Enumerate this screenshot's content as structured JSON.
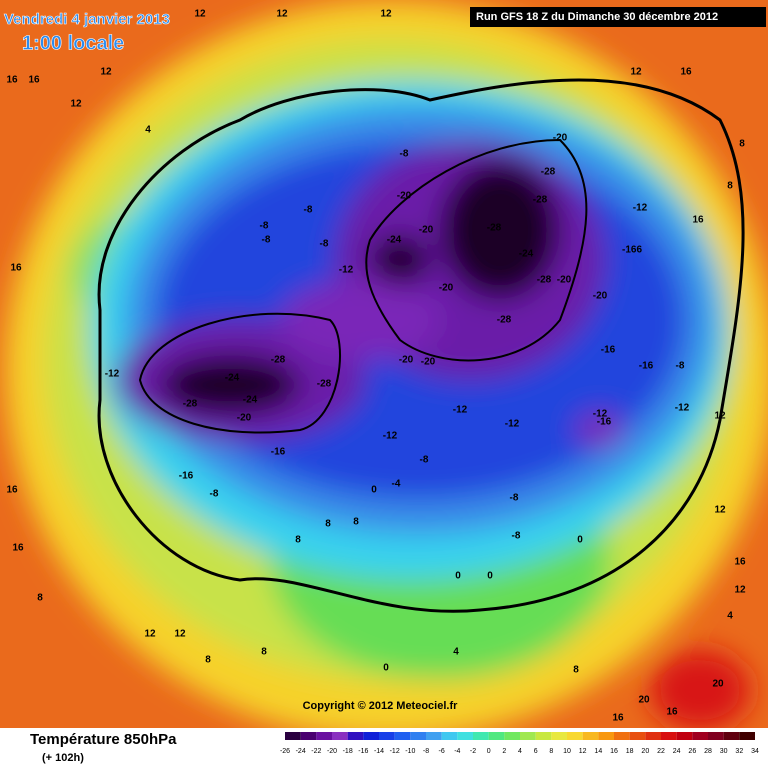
{
  "header": {
    "date": "Vendredi 4 janvier 2013",
    "time": "1:00 locale",
    "run": "Run GFS 18 Z du Dimanche 30 décembre 2012"
  },
  "copyright": "Copyright © 2012 Meteociel.fr",
  "legend": {
    "title": "Température 850hPa",
    "lead": "(+ 102h)",
    "ticks": [
      -26,
      -24,
      -22,
      -20,
      -18,
      -16,
      -14,
      -12,
      -10,
      -8,
      -6,
      -4,
      -2,
      0,
      2,
      4,
      6,
      8,
      10,
      12,
      14,
      16,
      18,
      20,
      22,
      24,
      26,
      28,
      30,
      32,
      34
    ],
    "colors": [
      "#2a0040",
      "#4a0070",
      "#6a10a0",
      "#8a30c0",
      "#3010c0",
      "#1020d8",
      "#1840e8",
      "#2060f0",
      "#3080f0",
      "#40a0f0",
      "#40c8f0",
      "#40e0e0",
      "#40e8b0",
      "#50e880",
      "#70e860",
      "#a0e850",
      "#c8e840",
      "#e8e840",
      "#f8d830",
      "#f8b820",
      "#f89810",
      "#f07010",
      "#e85010",
      "#e03010",
      "#d81010",
      "#c00010",
      "#a00020",
      "#800020",
      "#600010",
      "#400000"
    ]
  },
  "contour_labels": [
    "12",
    "12",
    "12",
    "16",
    "16",
    "12",
    "12",
    "12",
    "16",
    "4",
    "-8",
    "-20",
    "-28",
    "-20",
    "-28",
    "-28",
    "-24",
    "-20",
    "-24",
    "-28",
    "-20",
    "-20",
    "-28",
    "-166",
    "-20",
    "-16",
    "-28",
    "-24",
    "-24",
    "-28",
    "-28",
    "-20",
    "-20",
    "-20",
    "-12",
    "-12",
    "-12",
    "-12",
    "-16",
    "-16",
    "-16",
    "-8",
    "-12",
    "-8",
    "-8",
    "-8",
    "-12",
    "-8",
    "16",
    "16",
    "16",
    "8",
    "12",
    "12",
    "8",
    "8",
    "8",
    "8",
    "8",
    "0",
    "-4",
    "-8",
    "-8",
    "-8",
    "0",
    "0",
    "0",
    "16",
    "12",
    "4",
    "12",
    "20",
    "20",
    "16",
    "16",
    "0",
    "4",
    "8",
    "-12",
    "16",
    "8",
    "8",
    "12",
    "-12",
    "-8",
    "-16"
  ]
}
